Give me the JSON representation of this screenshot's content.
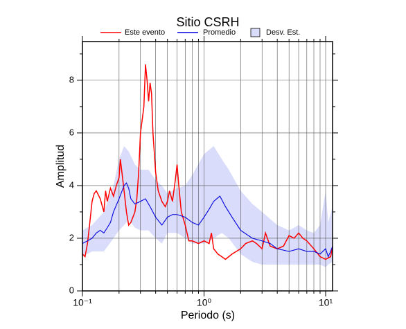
{
  "chart_data": {
    "type": "line",
    "title": "Sitio CSRH",
    "xlabel": "Periodo (s)",
    "ylabel": "Amplitud",
    "xscale": "log",
    "xlim": [
      0.1,
      11.4
    ],
    "ylim": [
      0,
      9.47
    ],
    "xticks": [
      {
        "value": 0.1,
        "label": "10⁻¹"
      },
      {
        "value": 1,
        "label": "10⁰"
      },
      {
        "value": 10,
        "label": "10¹"
      }
    ],
    "xminorticks": [
      0.2,
      0.3,
      0.4,
      0.5,
      0.6,
      0.7,
      0.8,
      0.9,
      2,
      3,
      4,
      5,
      6,
      7,
      8,
      9
    ],
    "yticks": [
      0,
      2,
      4,
      6,
      8
    ],
    "yminorticks": [
      1,
      3,
      5,
      7,
      9
    ],
    "grid": true,
    "band": {
      "name": "Desv. Est.",
      "color": "#d9dcfa",
      "x": [
        0.1,
        0.12,
        0.15,
        0.18,
        0.2,
        0.22,
        0.24,
        0.27,
        0.3,
        0.35,
        0.4,
        0.45,
        0.5,
        0.6,
        0.7,
        0.8,
        1.0,
        1.2,
        1.4,
        1.6,
        2.0,
        2.5,
        3.0,
        4.0,
        5.0,
        6.0,
        7.0,
        8.0,
        9.0,
        10,
        10.5,
        11.4
      ],
      "lower": [
        1.3,
        1.5,
        1.5,
        2.0,
        2.3,
        2.5,
        2.7,
        2.4,
        2.3,
        2.3,
        2.0,
        1.8,
        2.2,
        2.2,
        2.0,
        1.8,
        1.8,
        2.0,
        2.2,
        2.0,
        1.4,
        1.1,
        1.0,
        1.0,
        1.0,
        1.0,
        1.0,
        1.0,
        1.0,
        0.9,
        1.0,
        1.1
      ],
      "upper": [
        2.3,
        2.5,
        3.0,
        4.0,
        5.0,
        5.5,
        5.3,
        4.8,
        4.6,
        4.6,
        4.2,
        4.0,
        3.7,
        3.9,
        4.0,
        4.4,
        5.2,
        5.5,
        5.0,
        4.6,
        3.8,
        3.3,
        3.0,
        2.5,
        2.3,
        2.5,
        2.3,
        2.2,
        2.5,
        3.8,
        2.6,
        3.2
      ]
    },
    "series": [
      {
        "name": "Este evento",
        "color": "#ff0000",
        "x": [
          0.1,
          0.105,
          0.11,
          0.115,
          0.12,
          0.125,
          0.13,
          0.14,
          0.15,
          0.155,
          0.16,
          0.17,
          0.18,
          0.19,
          0.2,
          0.205,
          0.21,
          0.22,
          0.23,
          0.24,
          0.25,
          0.26,
          0.27,
          0.28,
          0.29,
          0.3,
          0.31,
          0.32,
          0.33,
          0.34,
          0.35,
          0.36,
          0.37,
          0.38,
          0.4,
          0.42,
          0.45,
          0.48,
          0.5,
          0.52,
          0.55,
          0.58,
          0.6,
          0.62,
          0.65,
          0.7,
          0.75,
          0.8,
          0.9,
          1.0,
          1.1,
          1.15,
          1.2,
          1.3,
          1.4,
          1.5,
          1.7,
          2.0,
          2.2,
          2.5,
          2.7,
          3.0,
          3.2,
          3.5,
          4.0,
          4.5,
          5.0,
          5.5,
          6.0,
          6.5,
          7.0,
          8.0,
          9.0,
          10,
          11,
          11.4
        ],
        "values": [
          1.4,
          1.3,
          1.8,
          2.6,
          3.4,
          3.7,
          3.8,
          3.5,
          3.0,
          3.8,
          3.4,
          3.9,
          3.6,
          4.0,
          4.3,
          5.0,
          4.6,
          3.8,
          3.0,
          2.5,
          2.6,
          2.8,
          3.0,
          3.5,
          4.5,
          6.0,
          6.5,
          7.0,
          8.6,
          8.0,
          7.2,
          7.9,
          7.5,
          6.0,
          4.5,
          3.8,
          3.4,
          3.2,
          3.4,
          3.8,
          3.4,
          4.2,
          4.8,
          4.0,
          3.0,
          2.5,
          1.9,
          1.9,
          1.8,
          1.9,
          1.8,
          2.2,
          1.6,
          1.4,
          1.3,
          1.2,
          1.4,
          1.6,
          1.8,
          1.9,
          1.8,
          1.6,
          2.2,
          1.7,
          1.6,
          1.7,
          2.1,
          2.0,
          2.2,
          2.0,
          1.9,
          1.6,
          1.3,
          1.2,
          1.3,
          1.7
        ]
      },
      {
        "name": "Promedio",
        "color": "#0000dd",
        "x": [
          0.1,
          0.11,
          0.12,
          0.13,
          0.14,
          0.15,
          0.16,
          0.17,
          0.18,
          0.2,
          0.22,
          0.23,
          0.24,
          0.25,
          0.27,
          0.3,
          0.33,
          0.36,
          0.4,
          0.45,
          0.5,
          0.55,
          0.6,
          0.7,
          0.8,
          0.9,
          1.0,
          1.1,
          1.2,
          1.35,
          1.5,
          1.7,
          2.0,
          2.5,
          3.0,
          3.5,
          4.0,
          5.0,
          6.0,
          7.0,
          8.0,
          9.0,
          10,
          10.5,
          11,
          11.4
        ],
        "values": [
          1.8,
          1.9,
          2.0,
          2.2,
          2.3,
          2.2,
          2.4,
          2.6,
          3.0,
          3.5,
          4.0,
          4.1,
          3.9,
          3.5,
          3.3,
          3.4,
          3.5,
          3.2,
          2.8,
          2.5,
          2.8,
          2.9,
          2.9,
          2.8,
          2.6,
          2.5,
          2.8,
          3.1,
          3.4,
          3.6,
          3.2,
          2.8,
          2.3,
          2.0,
          1.9,
          1.8,
          1.6,
          1.5,
          1.6,
          1.5,
          1.5,
          1.4,
          1.6,
          1.3,
          1.5,
          1.7
        ]
      }
    ]
  }
}
